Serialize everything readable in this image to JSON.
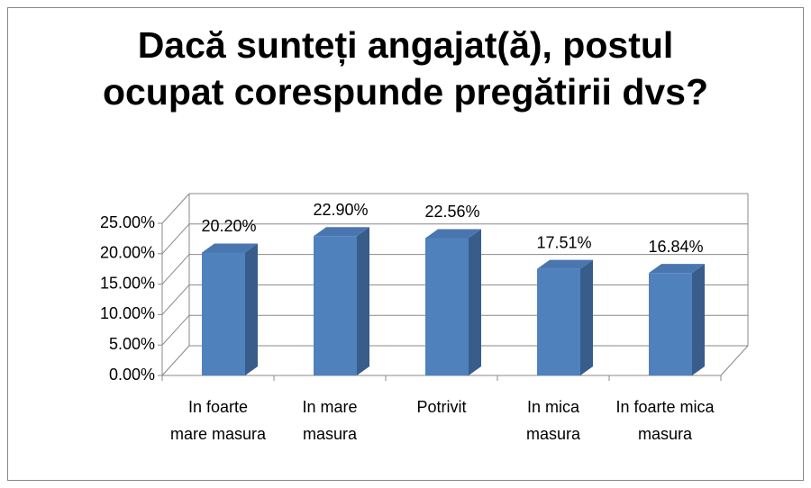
{
  "chart_data": {
    "type": "bar3d",
    "title": "Dacă sunteți angajat(ă), postul ocupat corespunde pregătirii dvs?",
    "categories": [
      "In foarte mare masura",
      "In mare masura",
      "Potrivit",
      "In mica masura",
      "In foarte mica masura"
    ],
    "values": [
      20.2,
      22.9,
      22.56,
      17.51,
      16.84
    ],
    "value_labels": [
      "20.20%",
      "22.90%",
      "22.56%",
      "17.51%",
      "16.84%"
    ],
    "color": "#4f81bd",
    "ylim": [
      0,
      25
    ],
    "yticks": [
      {
        "value": 0,
        "label": "0.00%"
      },
      {
        "value": 5,
        "label": "5.00%"
      },
      {
        "value": 10,
        "label": "10.00%"
      },
      {
        "value": 15,
        "label": "15.00%"
      },
      {
        "value": 20,
        "label": "20.00%"
      },
      {
        "value": 25,
        "label": "25.00%"
      }
    ],
    "grid": true
  }
}
